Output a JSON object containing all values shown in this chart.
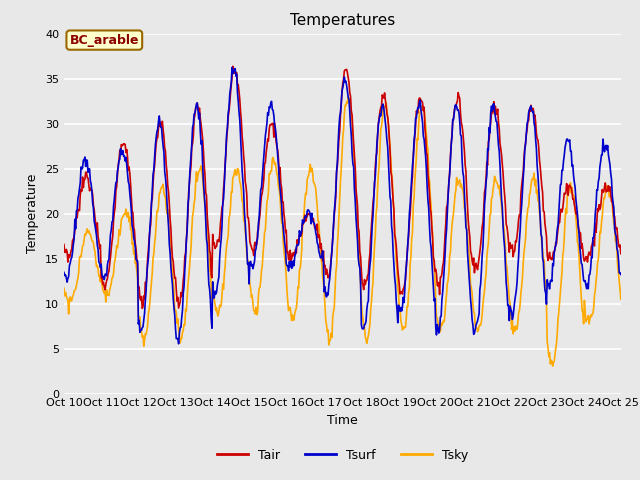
{
  "title": "Temperatures",
  "xlabel": "Time",
  "ylabel": "Temperature",
  "ylim": [
    0,
    40
  ],
  "yticks": [
    0,
    5,
    10,
    15,
    20,
    25,
    30,
    35,
    40
  ],
  "line_colors": {
    "Tair": "#cc0000",
    "Tsurf": "#0000cc",
    "Tsky": "#ffaa00"
  },
  "line_width": 1.2,
  "background_color": "#e8e8e8",
  "fig_background_color": "#e8e8e8",
  "legend_label": "BC_arable",
  "legend_box_facecolor": "#ffffcc",
  "legend_box_edgecolor": "#996600",
  "legend_text_color": "#8B0000",
  "grid_color": "#ffffff",
  "days": 15,
  "pts_per_day": 48,
  "xtick_labels": [
    "Oct 10",
    "Oct 11",
    "Oct 12",
    "Oct 13",
    "Oct 14",
    "Oct 15",
    "Oct 16",
    "Oct 17",
    "Oct 18",
    "Oct 19",
    "Oct 20",
    "Oct 21",
    "Oct 22",
    "Oct 23",
    "Oct 24",
    "Oct 25"
  ],
  "tair_day_mins": [
    15,
    12,
    10,
    10,
    16,
    16,
    15,
    13,
    12,
    11,
    12,
    14,
    16,
    15,
    15
  ],
  "tair_day_maxs": [
    24,
    28,
    30,
    32,
    36,
    30,
    20,
    36,
    33,
    33,
    33,
    32,
    32,
    23,
    23
  ],
  "tsurf_day_mins": [
    13,
    13,
    7,
    6,
    11,
    14,
    14,
    11,
    7,
    9,
    7,
    7,
    9,
    12,
    12
  ],
  "tsurf_day_maxs": [
    26,
    27,
    30,
    32,
    36,
    32,
    20,
    35,
    32,
    32,
    32,
    32,
    32,
    28,
    28
  ],
  "tsky_day_mins": [
    10,
    11,
    6,
    6,
    9,
    9,
    8,
    6,
    6,
    7,
    7,
    7,
    7,
    3,
    8
  ],
  "tsky_day_maxs": [
    18,
    20,
    23,
    25,
    25,
    26,
    25,
    33,
    32,
    32,
    24,
    24,
    24,
    23,
    23
  ],
  "tair_phase": 0.35,
  "tsurf_phase": 0.32,
  "tsky_phase": 0.4
}
